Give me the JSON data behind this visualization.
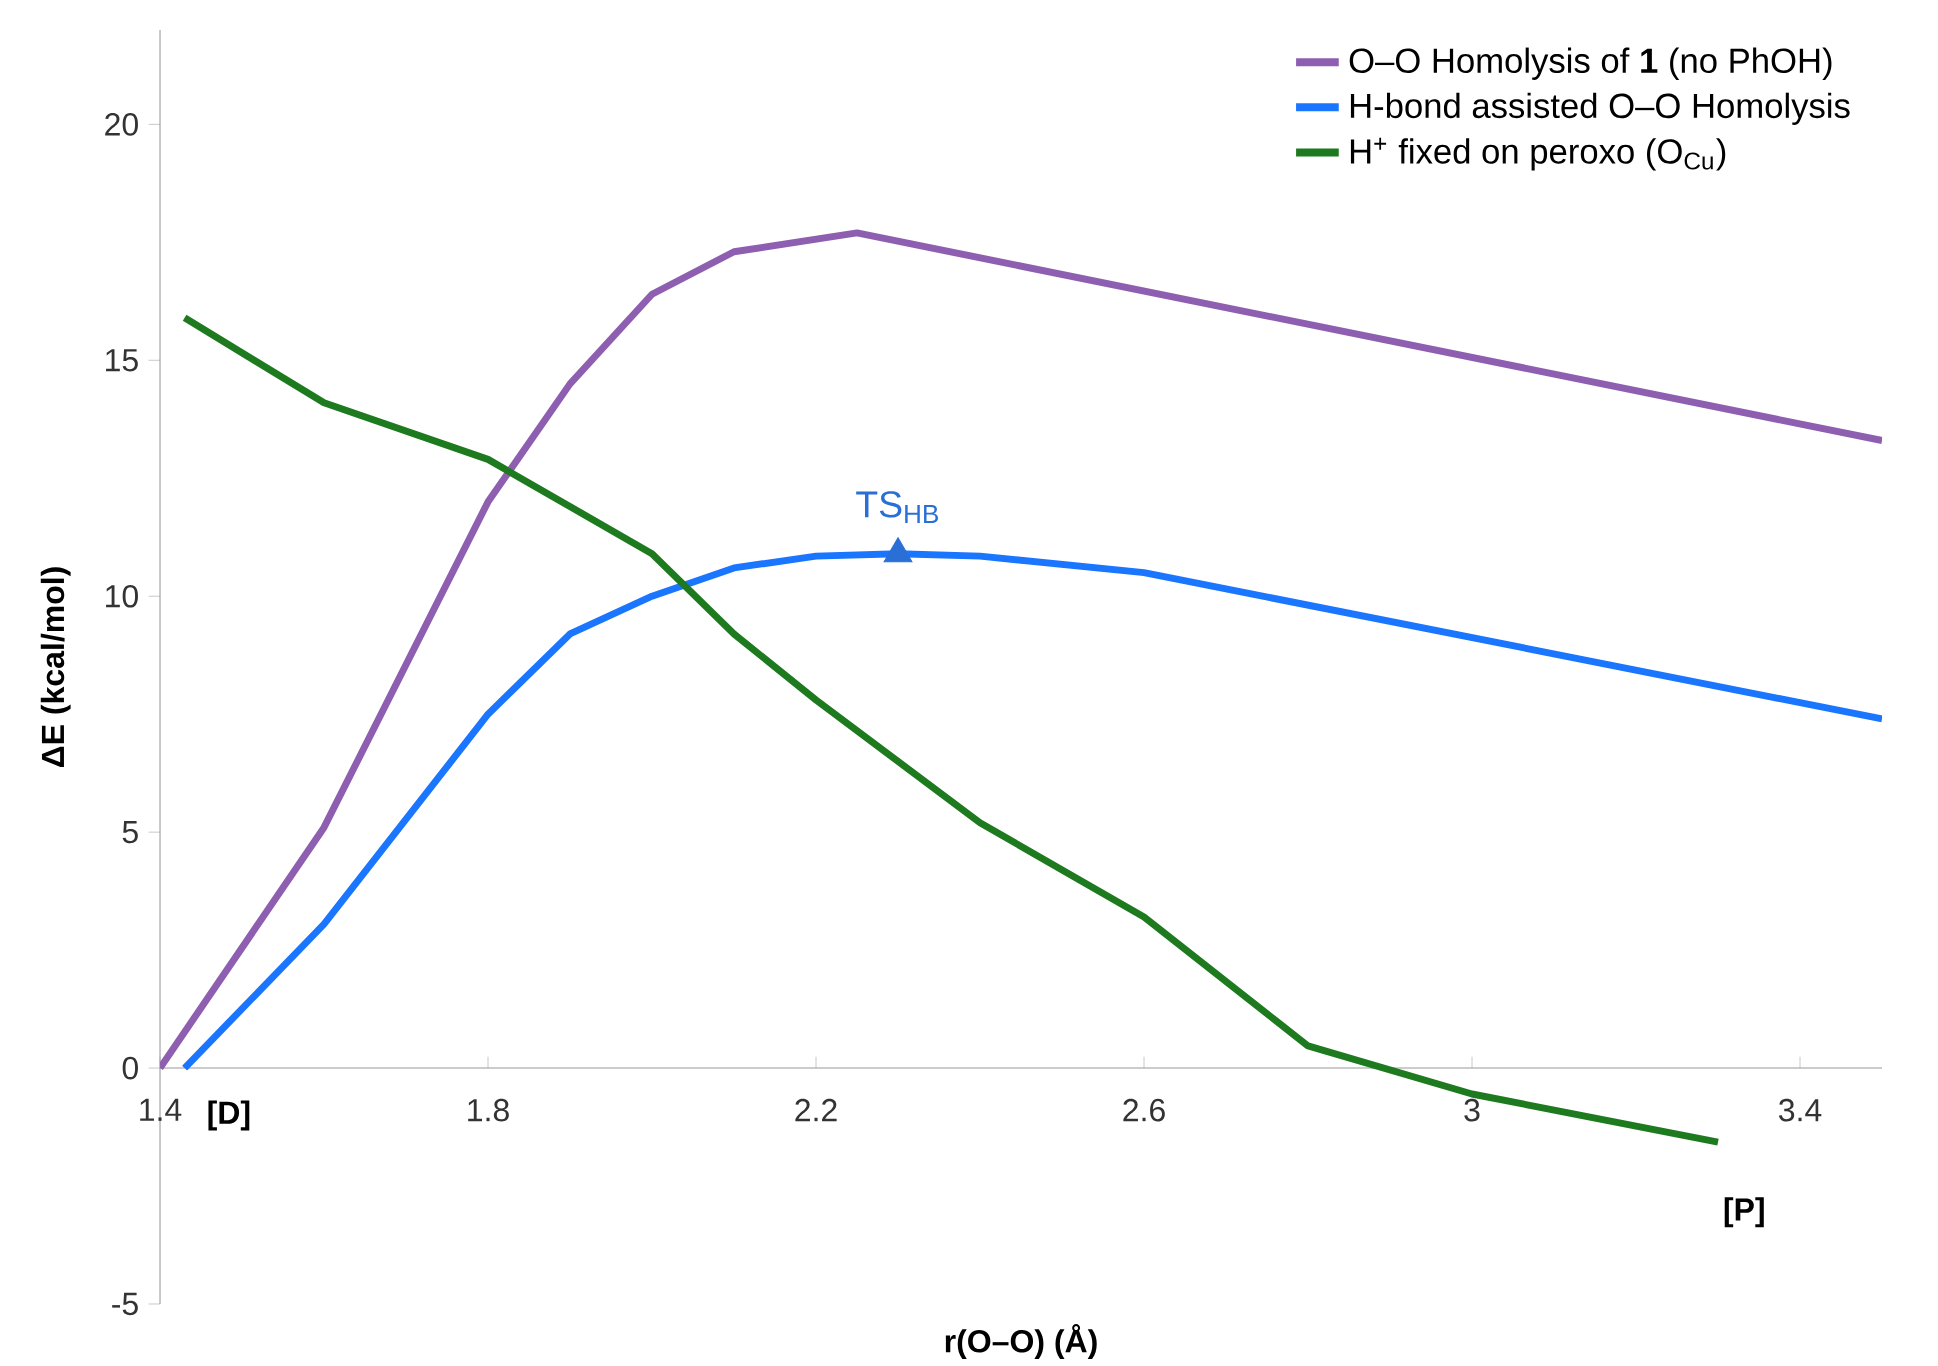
{
  "chart_data": {
    "type": "line",
    "xlabel": "r(O–O) (Å)",
    "ylabel": "ΔE  (kcal/mol)",
    "xlim": [
      1.4,
      3.5
    ],
    "ylim": [
      -5,
      22
    ],
    "xticks": [
      1.4,
      1.8,
      2.2,
      2.6,
      3,
      3.4
    ],
    "yticks": [
      -5,
      0,
      5,
      10,
      15,
      20
    ],
    "legend": "top right",
    "series": [
      {
        "name": "O–O Homolysis of **1** (no PhOH)",
        "color": "#8e5fb0",
        "x": [
          1.4,
          1.6,
          1.8,
          1.9,
          2.0,
          2.1,
          2.25,
          3.5
        ],
        "values": [
          0,
          5.1,
          12.0,
          14.5,
          16.4,
          17.3,
          17.7,
          13.3
        ]
      },
      {
        "name": "H-bond assisted O–O Homolysis",
        "color": "#1a75ff",
        "x": [
          1.43,
          1.6,
          1.8,
          1.9,
          2.0,
          2.1,
          2.2,
          2.3,
          2.4,
          2.6,
          3.5
        ],
        "values": [
          0,
          3.05,
          7.5,
          9.2,
          10.0,
          10.6,
          10.85,
          10.9,
          10.85,
          10.5,
          7.4
        ]
      },
      {
        "name": "H$^{+}$ fixed on peroxo (O$_{Cu}$)",
        "color": "#1e7a1e",
        "x": [
          1.43,
          1.6,
          1.8,
          2.0,
          2.1,
          2.2,
          2.4,
          2.6,
          2.8,
          3.0,
          3.3
        ],
        "values": [
          15.9,
          14.1,
          12.9,
          10.9,
          9.2,
          7.8,
          5.2,
          3.2,
          0.47,
          -0.55,
          -1.57
        ]
      },
      {
        "type": "scatter",
        "marker": "triangle",
        "color": "#2a6fd6",
        "x": [
          2.3
        ],
        "values": [
          10.9
        ]
      }
    ],
    "annotations": [
      {
        "text": "TS$_{HB}$",
        "x": 2.3,
        "y": 10.9
      },
      "[D]",
      "[P]"
    ]
  }
}
